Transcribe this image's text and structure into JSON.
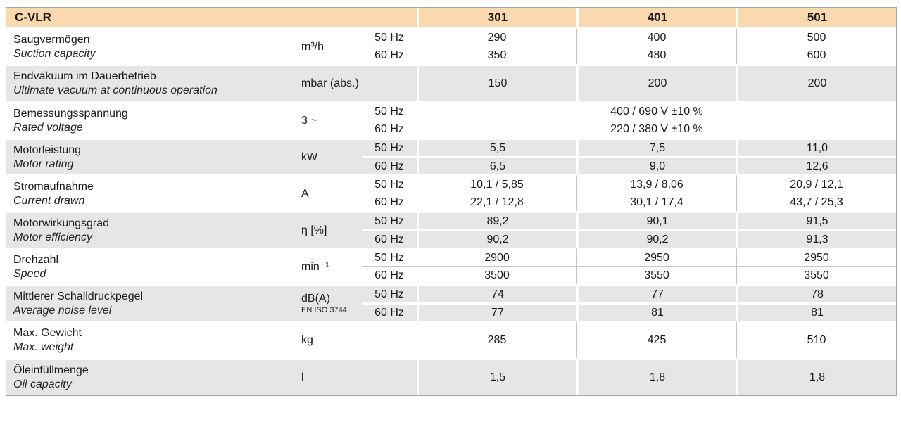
{
  "table": {
    "title": "C-VLR",
    "models": [
      "301",
      "401",
      "501"
    ],
    "freq_labels": {
      "hz50": "50 Hz",
      "hz60": "60 Hz"
    },
    "rows": [
      {
        "label_de": "Saugvermögen",
        "label_en": "Suction capacity",
        "unit": "m³/h",
        "v50": [
          "290",
          "400",
          "500"
        ],
        "v60": [
          "350",
          "480",
          "600"
        ]
      },
      {
        "label_de": "Endvakuum im Dauerbetrieb",
        "label_en": "Ultimate vacuum at continuous operation",
        "unit": "mbar (abs.)",
        "values": [
          "150",
          "200",
          "200"
        ]
      },
      {
        "label_de": "Bemessungsspannung",
        "label_en": "Rated voltage",
        "unit": "3 ~",
        "v50_span": "400 / 690 V ±10 %",
        "v60_span": "220 / 380 V ±10 %"
      },
      {
        "label_de": "Motorleistung",
        "label_en": "Motor rating",
        "unit": "kW",
        "v50": [
          "5,5",
          "7,5",
          "11,0"
        ],
        "v60": [
          "6,5",
          "9,0",
          "12,6"
        ]
      },
      {
        "label_de": "Stromaufnahme",
        "label_en": "Current drawn",
        "unit": "A",
        "v50": [
          "10,1 / 5,85",
          "13,9 / 8,06",
          "20,9 / 12,1"
        ],
        "v60": [
          "22,1 / 12,8",
          "30,1 / 17,4",
          "43,7 / 25,3"
        ]
      },
      {
        "label_de": "Motorwirkungsgrad",
        "label_en": "Motor efficiency",
        "unit": "η [%]",
        "v50": [
          "89,2",
          "90,1",
          "91,5"
        ],
        "v60": [
          "90,2",
          "90,2",
          "91,3"
        ]
      },
      {
        "label_de": "Drehzahl",
        "label_en": "Speed",
        "unit": "min⁻¹",
        "v50": [
          "2900",
          "2950",
          "2950"
        ],
        "v60": [
          "3500",
          "3550",
          "3550"
        ]
      },
      {
        "label_de": "Mittlerer Schalldruckpegel",
        "label_en": "Average noise level",
        "unit": "dB(A)",
        "unit_note": "EN ISO 3744",
        "v50": [
          "74",
          "77",
          "78"
        ],
        "v60": [
          "77",
          "81",
          "81"
        ]
      },
      {
        "label_de": "Max. Gewicht",
        "label_en": "Max. weight",
        "unit": "kg",
        "values": [
          "285",
          "425",
          "510"
        ]
      },
      {
        "label_de": "Öleinfüllmenge",
        "label_en": "Oil capacity",
        "unit": "l",
        "values": [
          "1,5",
          "1,8",
          "1,8"
        ]
      }
    ],
    "colors": {
      "header_bg": "#fbd9ae",
      "row_gray_bg": "#e6e6e6",
      "hairline": "#c6c6c6",
      "border": "#a3a3a3",
      "text": "#1a1a1a"
    }
  }
}
